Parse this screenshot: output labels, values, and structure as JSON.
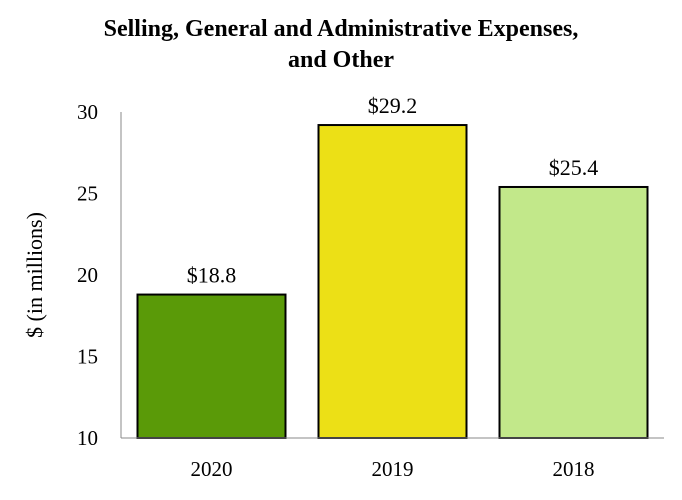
{
  "chart_data": {
    "type": "bar",
    "title_lines": [
      "Selling, General and Administrative Expenses,",
      "and Other"
    ],
    "ylabel": "$ (in millions)",
    "xlabel": "",
    "categories": [
      "2020",
      "2019",
      "2018"
    ],
    "values": [
      18.8,
      29.2,
      25.4
    ],
    "data_labels": [
      "$18.8",
      "$29.2",
      "$25.4"
    ],
    "colors": [
      "#5a9a08",
      "#ece016",
      "#c2e88a"
    ],
    "ylim": [
      10,
      30
    ],
    "yticks": [
      10,
      15,
      20,
      25,
      30
    ],
    "grid": false,
    "legend": "none"
  }
}
